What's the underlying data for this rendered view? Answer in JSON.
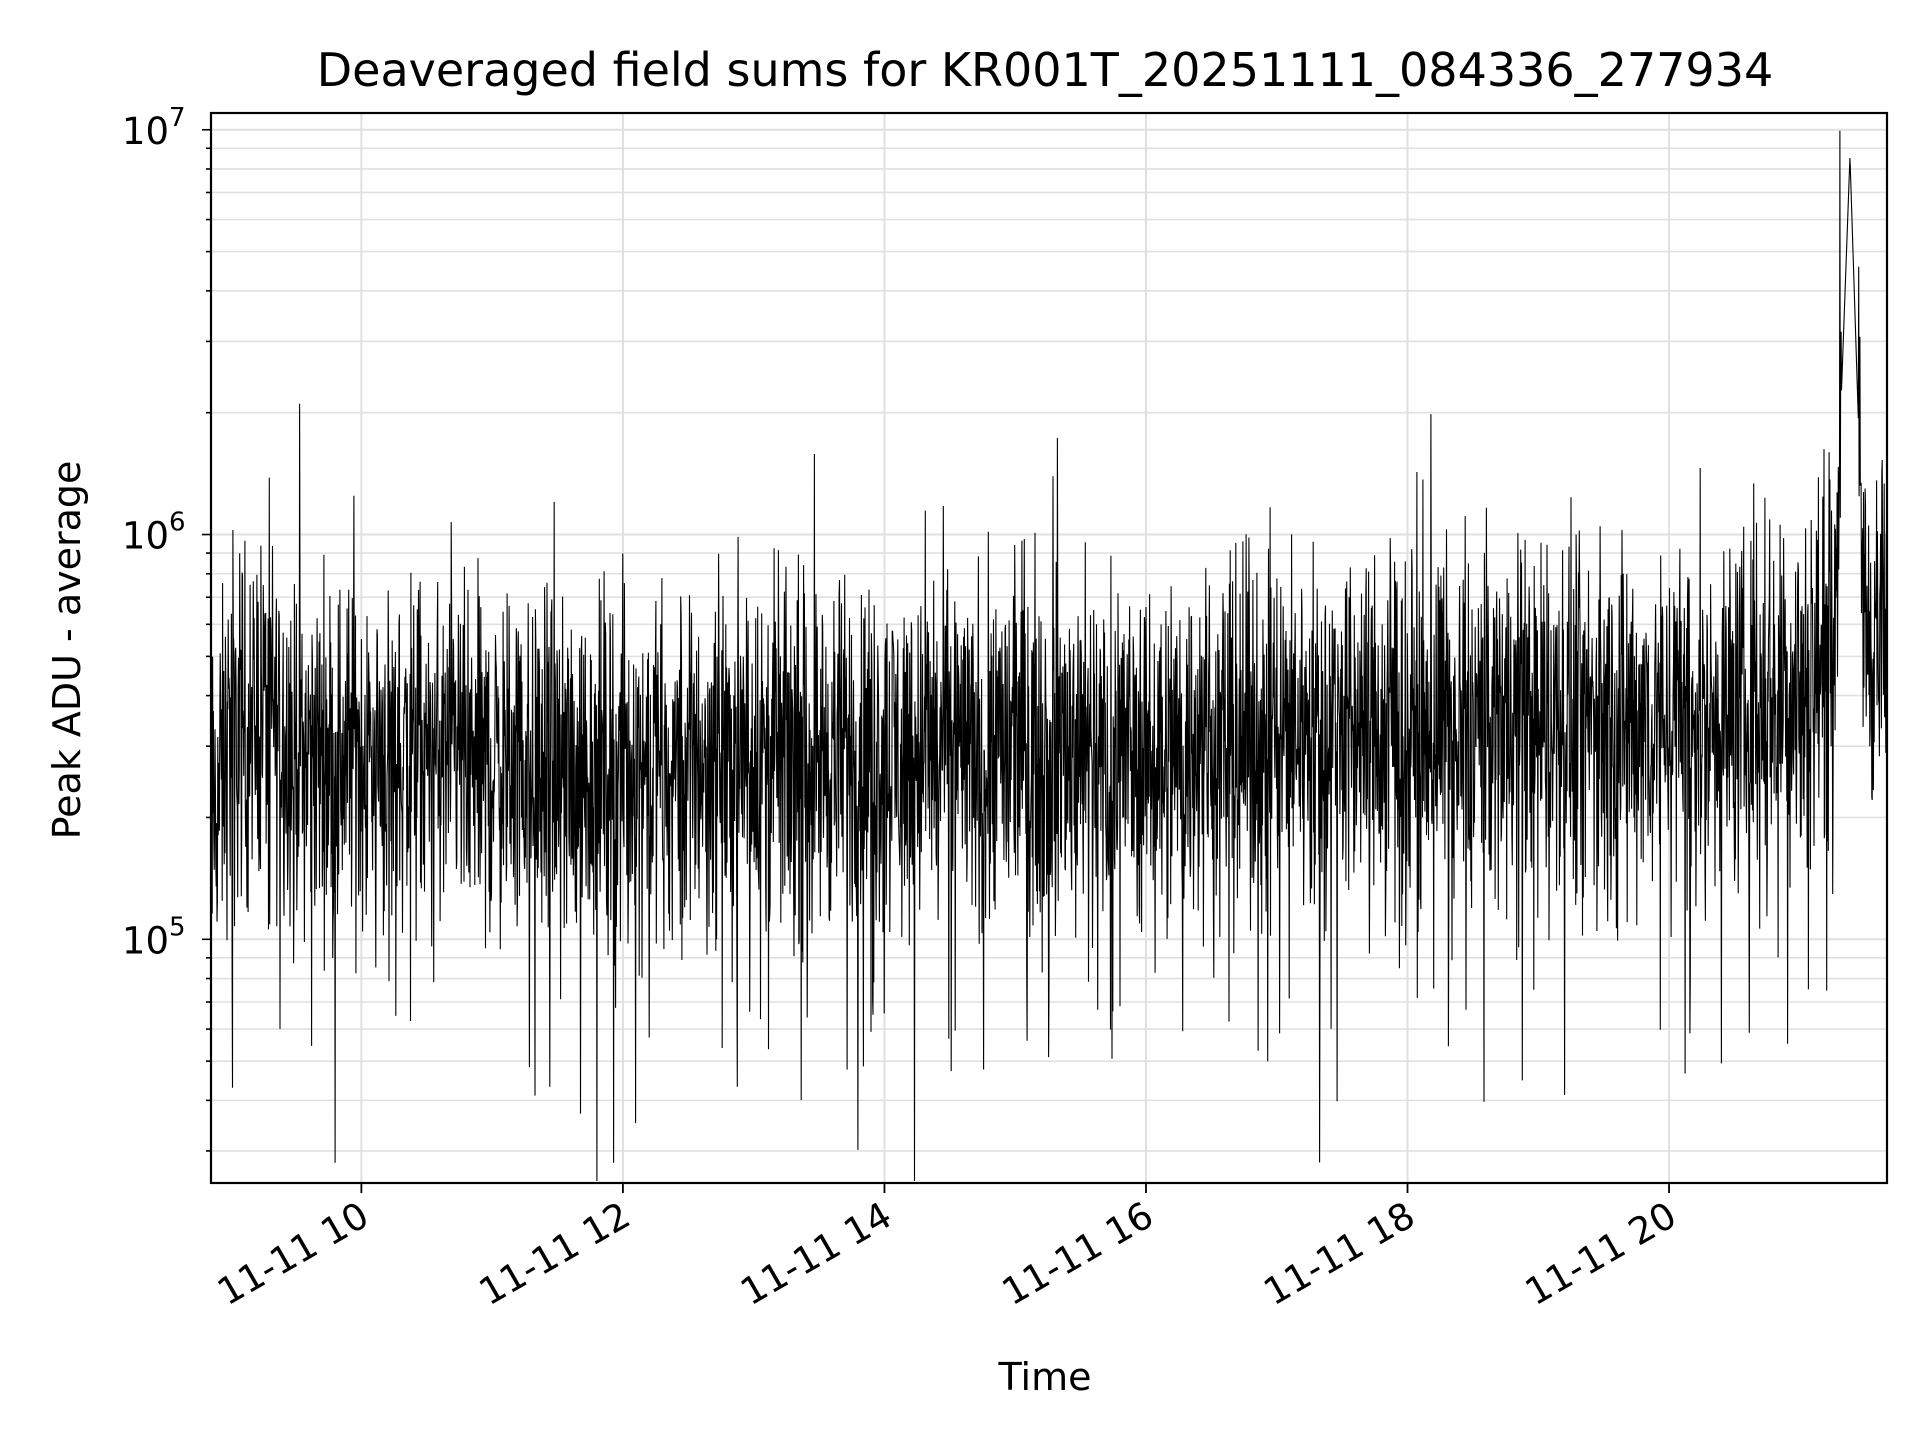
{
  "chart_data": {
    "type": "line",
    "title": "Deaveraged field sums for KR001T_20251111_084336_277934",
    "xlabel": "Time",
    "ylabel": "Peak ADU - average",
    "x_scale": "time",
    "y_scale": "log",
    "xlim": [
      "2025-11-11 08:51",
      "2025-11-11 21:40"
    ],
    "ylim": [
      25000,
      11000000
    ],
    "x_ticks": [
      {
        "t": "2025-11-11 10:00",
        "label": "11-11 10"
      },
      {
        "t": "2025-11-11 12:00",
        "label": "11-11 12"
      },
      {
        "t": "2025-11-11 14:00",
        "label": "11-11 14"
      },
      {
        "t": "2025-11-11 16:00",
        "label": "11-11 16"
      },
      {
        "t": "2025-11-11 18:00",
        "label": "11-11 18"
      },
      {
        "t": "2025-11-11 20:00",
        "label": "11-11 20"
      }
    ],
    "y_ticks": [
      {
        "value": 100000,
        "base": "10",
        "exp": "5"
      },
      {
        "value": 1000000,
        "base": "10",
        "exp": "6"
      },
      {
        "value": 10000000,
        "base": "10",
        "exp": "7"
      }
    ],
    "grid": true,
    "line_color": "#000000",
    "grid_color": "#e0e0e0",
    "series": [
      {
        "x": [
          "2025-11-11 08:51",
          "2025-11-11 09:00",
          "2025-11-11 09:15",
          "2025-11-11 09:30",
          "2025-11-11 09:45",
          "2025-11-11 10:00",
          "2025-11-11 10:30",
          "2025-11-11 11:00",
          "2025-11-11 11:30",
          "2025-11-11 12:00",
          "2025-11-11 12:30",
          "2025-11-11 13:00",
          "2025-11-11 13:30",
          "2025-11-11 14:00",
          "2025-11-11 14:30",
          "2025-11-11 15:00",
          "2025-11-11 15:30",
          "2025-11-11 16:00",
          "2025-11-11 16:30",
          "2025-11-11 17:00",
          "2025-11-11 17:30",
          "2025-11-11 18:00",
          "2025-11-11 18:30",
          "2025-11-11 19:00",
          "2025-11-11 19:30",
          "2025-11-11 20:00",
          "2025-11-11 20:30",
          "2025-11-11 21:00",
          "2025-11-11 21:15",
          "2025-11-11 21:23",
          "2025-11-11 21:30",
          "2025-11-11 21:40"
        ],
        "y": [
          180000,
          330000,
          380000,
          300000,
          290000,
          290000,
          280000,
          270000,
          260000,
          270000,
          280000,
          290000,
          280000,
          290000,
          300000,
          310000,
          300000,
          290000,
          300000,
          330000,
          340000,
          340000,
          350000,
          350000,
          360000,
          360000,
          360000,
          430000,
          550000,
          8600000,
          560000,
          560000
        ]
      }
    ]
  }
}
